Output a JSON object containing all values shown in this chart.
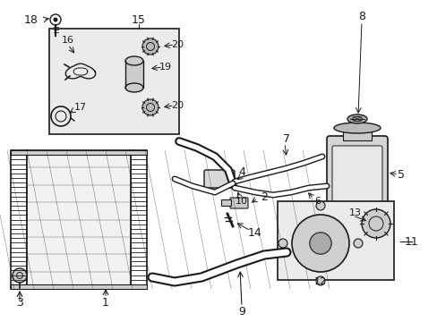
{
  "bg_color": "#ffffff",
  "lc": "#1a1a1a",
  "box_bg": "#e8e8e8",
  "fig_w": 4.89,
  "fig_h": 3.6,
  "dpi": 100
}
